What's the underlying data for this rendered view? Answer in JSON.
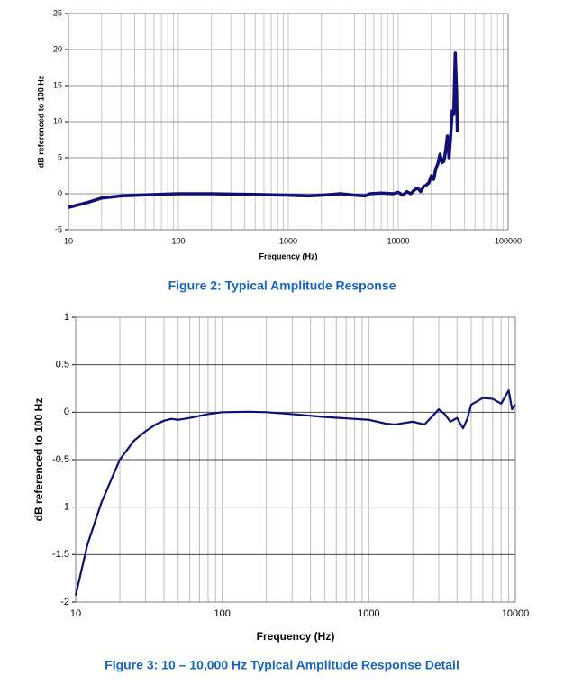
{
  "chart_data": [
    {
      "type": "line",
      "title": "Figure 2:  Typical Amplitude Response",
      "x_label": "Frequency (Hz)",
      "y_label": "dB referenced to 100 Hz",
      "xlog": true,
      "grid": true,
      "xlim": [
        10,
        100000
      ],
      "xticks": [
        10,
        100,
        1000,
        10000,
        100000
      ],
      "ylim": [
        -5,
        25
      ],
      "yticks": [
        -5,
        0,
        5,
        10,
        15,
        20,
        25
      ],
      "series": [
        {
          "color": "#0f0f75",
          "x": [
            10,
            15,
            20,
            30,
            50,
            100,
            200,
            500,
            1000,
            1500,
            2000,
            3000,
            4000,
            5000,
            5500,
            7000,
            9000,
            10000,
            11000,
            12000,
            13000,
            14000,
            15000,
            16000,
            17000,
            18000,
            19000,
            20000,
            21000,
            22000,
            23000,
            24000,
            25000,
            26000,
            27000,
            28000,
            29000,
            30000,
            31000,
            32000,
            33000,
            34000,
            34500
          ],
          "values": [
            -1.9,
            -1.2,
            -0.6,
            -0.3,
            -0.15,
            0,
            0,
            -0.1,
            -0.2,
            -0.3,
            -0.2,
            0,
            -0.2,
            -0.3,
            0,
            0.1,
            0,
            0.2,
            -0.2,
            0.3,
            0,
            0.5,
            0.8,
            0.3,
            1.0,
            1.2,
            1.5,
            2.5,
            2.0,
            3.5,
            4.2,
            5.5,
            4.3,
            4.5,
            6.0,
            8.0,
            5.0,
            8.0,
            11.5,
            11.0,
            19.5,
            14,
            8.5
          ]
        }
      ]
    },
    {
      "type": "line",
      "title": "Figure 3:  10 – 10,000 Hz Typical Amplitude Response Detail",
      "x_label": "Frequency (Hz)",
      "y_label": "dB referenced to 100 Hz",
      "xlog": true,
      "grid": true,
      "xlim": [
        10,
        10000
      ],
      "xticks": [
        10,
        100,
        1000,
        10000
      ],
      "ylim": [
        -2,
        1
      ],
      "yticks": [
        -2,
        -1.5,
        -1,
        -0.5,
        0,
        0.5,
        1
      ],
      "series": [
        {
          "color": "#0f0f75",
          "x": [
            10,
            12,
            15,
            20,
            25,
            30,
            35,
            40,
            45,
            50,
            60,
            80,
            100,
            150,
            200,
            300,
            500,
            1000,
            1300,
            1500,
            1800,
            2000,
            2400,
            2800,
            3000,
            3300,
            3600,
            4000,
            4400,
            4700,
            5000,
            6000,
            7000,
            8000,
            9000,
            9500,
            10000
          ],
          "values": [
            -1.93,
            -1.4,
            -0.95,
            -0.5,
            -0.3,
            -0.2,
            -0.13,
            -0.09,
            -0.07,
            -0.08,
            -0.06,
            -0.02,
            0,
            0.005,
            0,
            -0.02,
            -0.05,
            -0.08,
            -0.12,
            -0.13,
            -0.11,
            -0.1,
            -0.13,
            -0.02,
            0.03,
            -0.02,
            -0.1,
            -0.06,
            -0.17,
            -0.07,
            0.08,
            0.15,
            0.14,
            0.09,
            0.23,
            0.03,
            0.08
          ]
        }
      ]
    }
  ]
}
